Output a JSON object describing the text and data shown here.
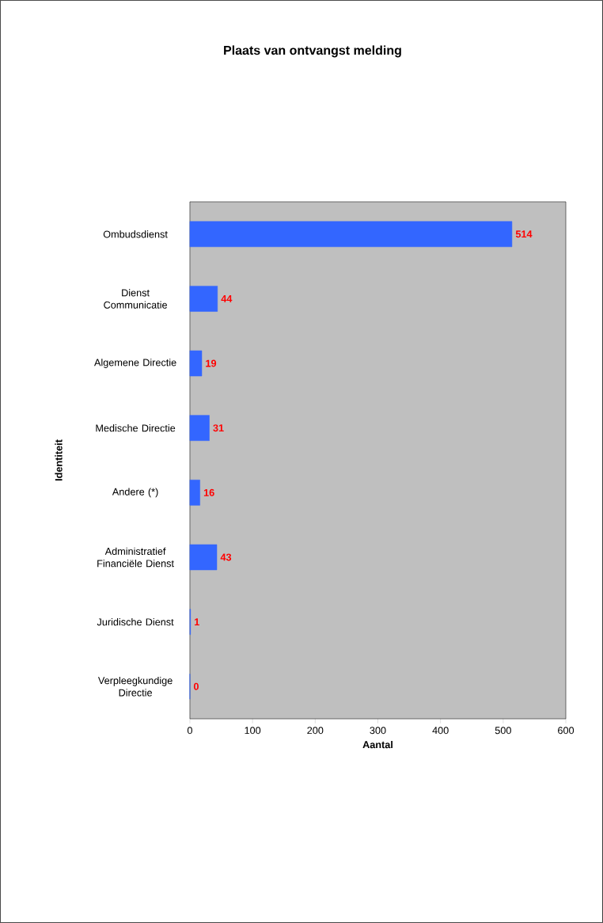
{
  "chart_data": {
    "type": "bar",
    "orientation": "horizontal",
    "title": "Plaats van ontvangst melding",
    "xlabel": "Aantal",
    "ylabel": "Identiteit",
    "categories": [
      "Ombudsdienst",
      "Dienst Communicatie",
      "Algemene Directie",
      "Medische Directie",
      "Andere (*)",
      "Administratief Financiële Dienst",
      "Juridische Dienst",
      "Verpleegkundige Directie"
    ],
    "values": [
      514,
      44,
      19,
      31,
      16,
      43,
      1,
      0
    ],
    "color": "#3366ff",
    "xlim": [
      0,
      600
    ],
    "xticks": [
      0,
      100,
      200,
      300,
      400,
      500,
      600
    ],
    "data_labels": true
  }
}
